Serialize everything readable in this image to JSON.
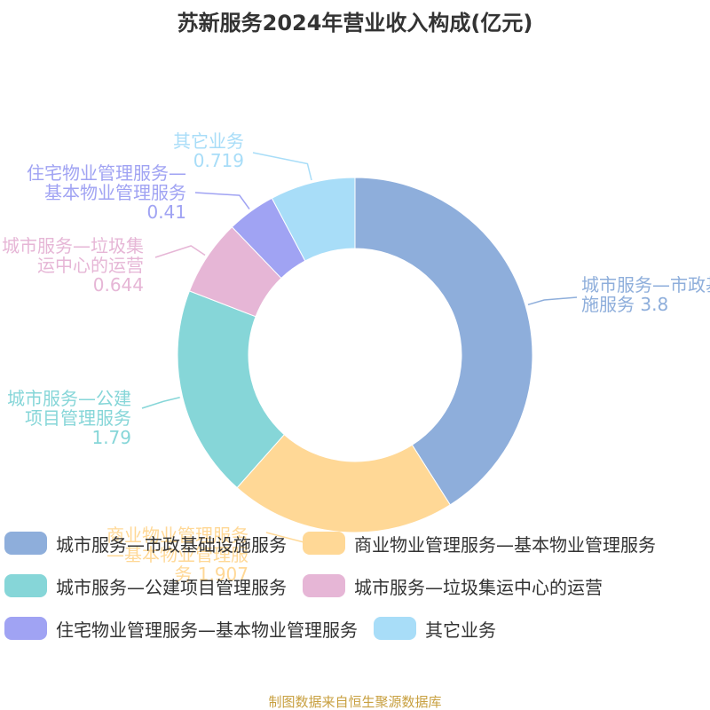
{
  "chart_data": {
    "type": "donut",
    "title": "苏新服务2024年营业收入构成(亿元)",
    "categories": [
      "城市服务—市政基础设施服务",
      "商业物业管理服务—基本物业管理服务",
      "城市服务—公建项目管理服务",
      "城市服务—垃圾集运中心的运营",
      "住宅物业管理服务—基本物业管理服务",
      "其它业务"
    ],
    "values": [
      3.8,
      1.907,
      1.79,
      0.644,
      0.41,
      0.719
    ],
    "colors": [
      "#8eaedb",
      "#ffd896",
      "#86d6d8",
      "#e6b6d6",
      "#a0a3f3",
      "#a8ddf8"
    ],
    "source": "制图数据来自恒生聚源数据库"
  }
}
